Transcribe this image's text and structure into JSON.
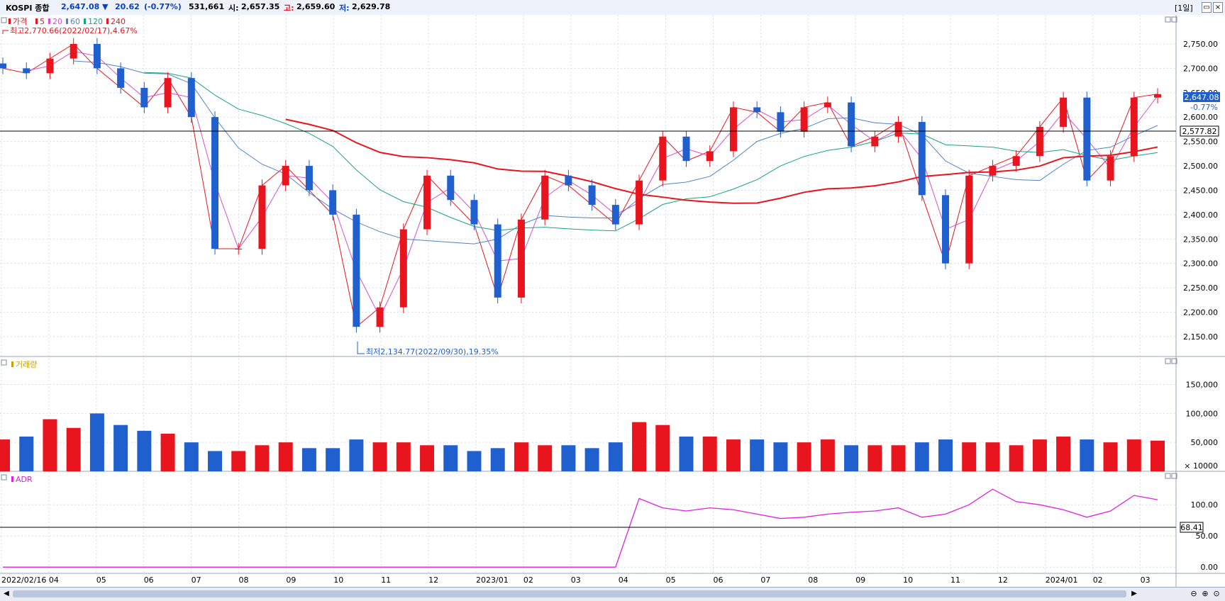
{
  "header": {
    "symbol": "KOSPI 종합",
    "price": "2,647.08",
    "change_arrow": "▼",
    "change": "20.62",
    "change_pct": "(-0.77%)",
    "volume": "531,661",
    "open_label": "시:",
    "open": "2,657.35",
    "high_label": "고:",
    "high": "2,659.60",
    "low_label": "저:",
    "low": "2,629.78",
    "period": "[1일]"
  },
  "colors": {
    "up": "#e8141e",
    "down": "#1f5fce",
    "ma5": "#e8141e",
    "ma20": "#d84fd0",
    "ma60": "#4d84c9",
    "ma120": "#19a37f",
    "ma240": "#e8141e",
    "adr": "#e020e0",
    "header_blue": "#0a3fbf",
    "header_red": "#e8141e"
  },
  "price_panel": {
    "legend": {
      "price": "가격",
      "ma5": "5",
      "ma20": "20",
      "ma60": "60",
      "ma120": "120",
      "ma240": "240"
    },
    "high_note": "최고2,770.66(2022/02/17),4.67%",
    "low_note": "최저2,134.77(2022/09/30),19.35%",
    "ref_line": "2,577.82",
    "last_price": "2,647.08",
    "last_pct": "-0.77%",
    "y_ticks": [
      "2,750.00",
      "2,700.00",
      "2,650.00",
      "2,600.00",
      "2,550.00",
      "2,500.00",
      "2,450.00",
      "2,400.00",
      "2,350.00",
      "2,300.00",
      "2,250.00",
      "2,200.00",
      "2,150.00"
    ]
  },
  "volume_panel": {
    "title": "거래량",
    "y_ticks": [
      "150,000",
      "100,000",
      "50,000"
    ],
    "unit": "× 10000"
  },
  "adr_panel": {
    "title": "ADR",
    "ref_value": "68.41",
    "y_ticks": [
      "100.00",
      "50.00",
      "0.00"
    ]
  },
  "x_labels": [
    "2022/02/16",
    "04",
    "05",
    "06",
    "07",
    "08",
    "09",
    "10",
    "11",
    "12",
    "2023/01",
    "02",
    "03",
    "04",
    "05",
    "06",
    "07",
    "08",
    "09",
    "10",
    "11",
    "12",
    "2024/01",
    "02",
    "03"
  ],
  "chart_data": {
    "type": "candlestick",
    "x": [
      "2022-02-16",
      "2022-03-01",
      "2022-03-15",
      "2022-04-01",
      "2022-04-15",
      "2022-05-01",
      "2022-05-15",
      "2022-06-01",
      "2022-06-15",
      "2022-07-01",
      "2022-07-15",
      "2022-08-01",
      "2022-08-15",
      "2022-09-01",
      "2022-09-15",
      "2022-09-30",
      "2022-10-15",
      "2022-11-01",
      "2022-11-15",
      "2022-12-01",
      "2022-12-15",
      "2023-01-01",
      "2023-01-15",
      "2023-02-01",
      "2023-02-15",
      "2023-03-01",
      "2023-03-15",
      "2023-04-01",
      "2023-04-15",
      "2023-05-01",
      "2023-05-15",
      "2023-06-01",
      "2023-06-15",
      "2023-07-01",
      "2023-07-15",
      "2023-08-01",
      "2023-08-15",
      "2023-09-01",
      "2023-09-15",
      "2023-10-01",
      "2023-10-15",
      "2023-11-01",
      "2023-11-15",
      "2023-12-01",
      "2023-12-15",
      "2024-01-01",
      "2024-01-15",
      "2024-02-01",
      "2024-02-15",
      "2024-02-23"
    ],
    "close": [
      2700,
      2690,
      2720,
      2750,
      2700,
      2660,
      2620,
      2680,
      2600,
      2330,
      2330,
      2460,
      2500,
      2450,
      2400,
      2170,
      2210,
      2370,
      2480,
      2430,
      2380,
      2230,
      2390,
      2480,
      2460,
      2420,
      2380,
      2470,
      2560,
      2510,
      2530,
      2620,
      2610,
      2570,
      2620,
      2630,
      2540,
      2560,
      2590,
      2440,
      2300,
      2480,
      2500,
      2520,
      2580,
      2640,
      2470,
      2520,
      2640,
      2647.08
    ],
    "volume_x10000": [
      55,
      60,
      90,
      75,
      100,
      80,
      70,
      65,
      50,
      35,
      35,
      45,
      50,
      40,
      40,
      55,
      50,
      50,
      45,
      45,
      35,
      40,
      50,
      45,
      45,
      40,
      50,
      85,
      80,
      60,
      60,
      55,
      55,
      50,
      50,
      55,
      45,
      45,
      45,
      50,
      55,
      50,
      50,
      45,
      55,
      60,
      55,
      50,
      55,
      53
    ],
    "adr": [
      0,
      0,
      0,
      0,
      0,
      0,
      0,
      0,
      0,
      0,
      0,
      0,
      0,
      0,
      0,
      0,
      0,
      0,
      0,
      0,
      0,
      0,
      0,
      0,
      0,
      0,
      0,
      110,
      95,
      90,
      95,
      92,
      85,
      78,
      80,
      85,
      88,
      90,
      95,
      80,
      85,
      100,
      125,
      105,
      100,
      92,
      80,
      90,
      115,
      108
    ],
    "ma_periods": [
      5,
      20,
      60,
      120,
      240
    ],
    "y_range": [
      2115,
      2795
    ],
    "volume_range": [
      0,
      180
    ],
    "adr_range": [
      -10,
      140
    ],
    "high": {
      "value": 2770.66,
      "date": "2022/02/17"
    },
    "low": {
      "value": 2134.77,
      "date": "2022/09/30"
    },
    "ref_price": 2577.82,
    "ref_adr": 68.41
  }
}
